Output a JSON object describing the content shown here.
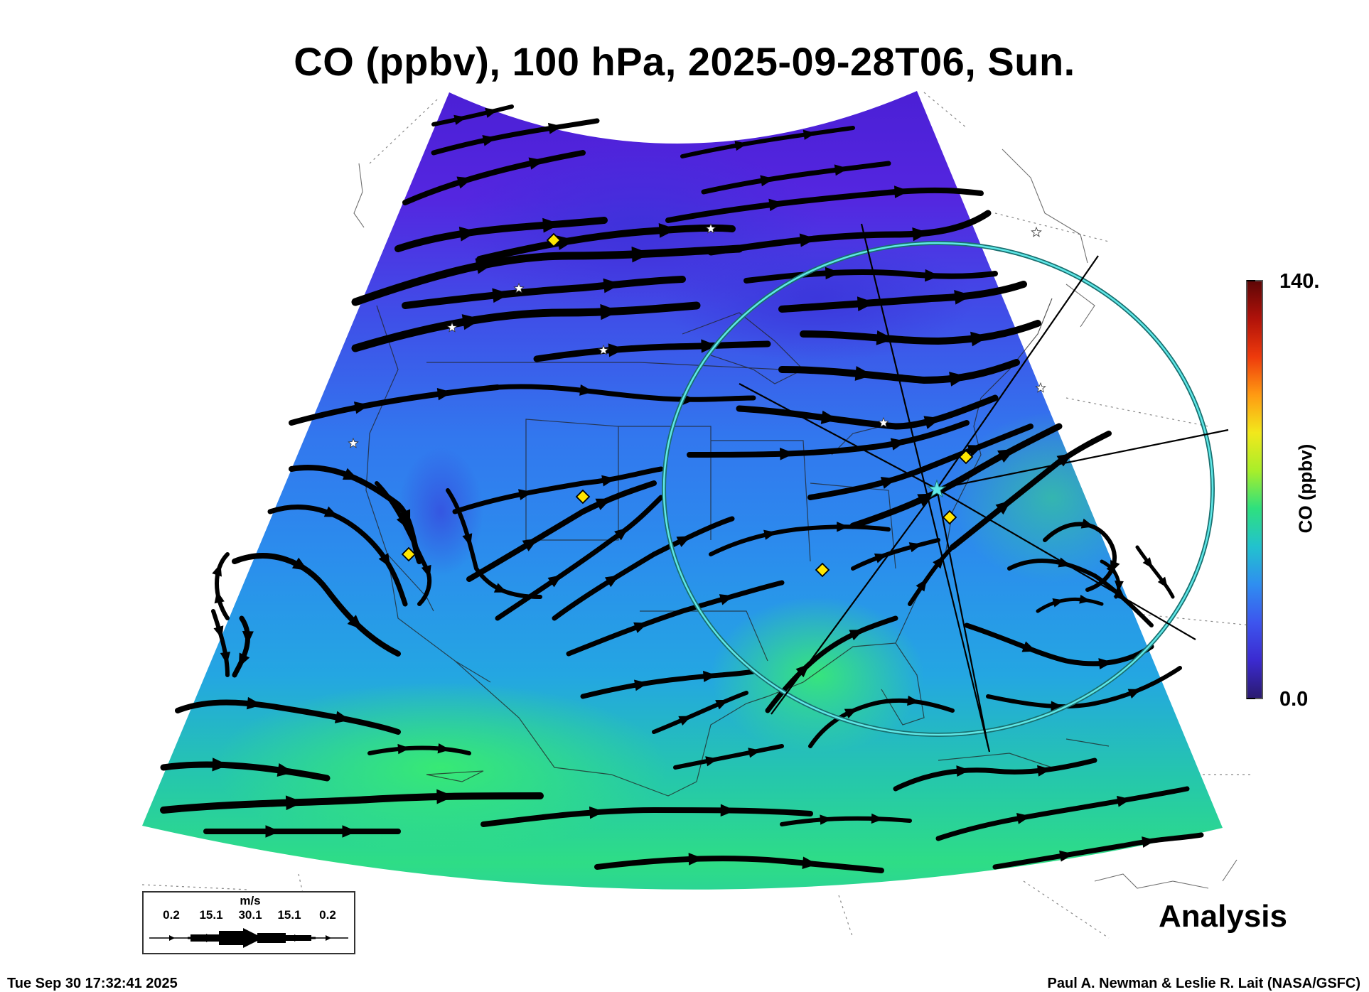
{
  "title": "CO (ppbv), 100 hPa, 2025-09-28T06, Sun.",
  "colorbar": {
    "max_label": "140.",
    "min_label": "0.0",
    "title": "CO (ppbv)",
    "stops": [
      "#2a1a6e",
      "#3b2ad0",
      "#3d55ee",
      "#2f8ef0",
      "#22c2ce",
      "#2ee07e",
      "#a8ee2a",
      "#f2e81c",
      "#ff9a12",
      "#ee3a0c",
      "#b0120a",
      "#5e0606"
    ]
  },
  "product_label": "Analysis",
  "timestamp": "Tue Sep 30 17:32:41 2025",
  "credit": "Paul A. Newman & Leslie R. Lait (NASA/GSFC)",
  "wind_legend": {
    "unit": "m/s",
    "ticks": [
      "0.2",
      "15.1",
      "30.1",
      "15.1",
      "0.2"
    ]
  },
  "colors": {
    "ring": "#2ec8c8",
    "marker_diamond": "#ffe600",
    "marker_star": "#ffffff",
    "streamline": "#000000"
  }
}
